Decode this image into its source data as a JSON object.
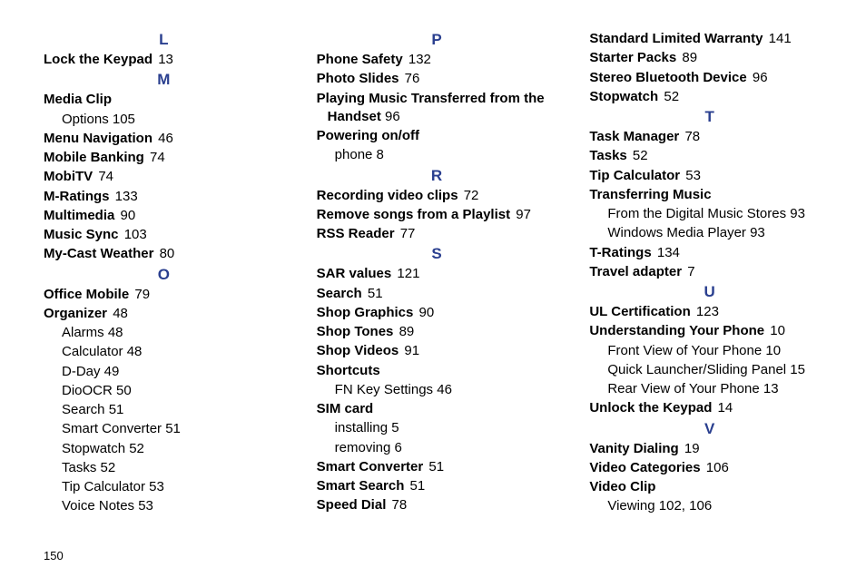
{
  "colors": {
    "letter": "#2a3f8f",
    "text": "#000000",
    "background": "#ffffff"
  },
  "page_number": "150",
  "columns": [
    {
      "groups": [
        {
          "letter": "L",
          "entries": [
            {
              "term": "Lock the Keypad",
              "page": "13"
            }
          ]
        },
        {
          "letter": "M",
          "entries": [
            {
              "term": "Media Clip",
              "subs": [
                {
                  "label": "Options",
                  "page": "105"
                }
              ]
            },
            {
              "term": "Menu Navigation",
              "page": "46"
            },
            {
              "term": "Mobile Banking",
              "page": "74"
            },
            {
              "term": "MobiTV",
              "page": "74"
            },
            {
              "term": "M-Ratings",
              "page": "133"
            },
            {
              "term": "Multimedia",
              "page": "90"
            },
            {
              "term": "Music Sync",
              "page": "103"
            },
            {
              "term": "My-Cast Weather",
              "page": "80"
            }
          ]
        },
        {
          "letter": "O",
          "entries": [
            {
              "term": "Office Mobile",
              "page": "79"
            },
            {
              "term": "Organizer",
              "page": "48",
              "subs": [
                {
                  "label": "Alarms",
                  "page": "48"
                },
                {
                  "label": "Calculator",
                  "page": "48"
                },
                {
                  "label": "D-Day",
                  "page": "49"
                },
                {
                  "label": "DioOCR",
                  "page": "50"
                },
                {
                  "label": "Search",
                  "page": "51"
                },
                {
                  "label": "Smart Converter",
                  "page": "51"
                },
                {
                  "label": "Stopwatch",
                  "page": "52"
                },
                {
                  "label": "Tasks",
                  "page": "52"
                },
                {
                  "label": "Tip Calculator",
                  "page": "53"
                },
                {
                  "label": "Voice Notes",
                  "page": "53"
                }
              ]
            }
          ]
        }
      ]
    },
    {
      "groups": [
        {
          "letter": "P",
          "entries": [
            {
              "term": "Phone Safety",
              "page": "132"
            },
            {
              "term": "Photo Slides",
              "page": "76"
            },
            {
              "term": "Playing Music Transferred from the Handset",
              "page": "96",
              "hang": true
            },
            {
              "term": "Powering on/off",
              "subs": [
                {
                  "label": "phone",
                  "page": "8"
                }
              ]
            }
          ]
        },
        {
          "letter": "R",
          "entries": [
            {
              "term": "Recording video clips",
              "page": "72"
            },
            {
              "term": "Remove songs from a Playlist",
              "page": "97"
            },
            {
              "term": "RSS Reader",
              "page": "77"
            }
          ]
        },
        {
          "letter": "S",
          "entries": [
            {
              "term": "SAR values",
              "page": "121"
            },
            {
              "term": "Search",
              "page": "51"
            },
            {
              "term": "Shop Graphics",
              "page": "90"
            },
            {
              "term": "Shop Tones",
              "page": "89"
            },
            {
              "term": "Shop Videos",
              "page": "91"
            },
            {
              "term": "Shortcuts",
              "subs": [
                {
                  "label": "FN Key Settings",
                  "page": "46"
                }
              ]
            },
            {
              "term": "SIM card",
              "subs": [
                {
                  "label": "installing",
                  "page": "5"
                },
                {
                  "label": "removing",
                  "page": "6"
                }
              ]
            },
            {
              "term": "Smart Converter",
              "page": "51"
            },
            {
              "term": "Smart Search",
              "page": "51"
            },
            {
              "term": "Speed Dial",
              "page": "78"
            }
          ]
        }
      ]
    },
    {
      "groups": [
        {
          "letter": "",
          "entries": [
            {
              "term": "Standard Limited Warranty",
              "page": "141"
            },
            {
              "term": "Starter Packs",
              "page": "89"
            },
            {
              "term": "Stereo Bluetooth Device",
              "page": "96"
            },
            {
              "term": "Stopwatch",
              "page": "52"
            }
          ]
        },
        {
          "letter": "T",
          "entries": [
            {
              "term": "Task Manager",
              "page": "78"
            },
            {
              "term": "Tasks",
              "page": "52"
            },
            {
              "term": "Tip Calculator",
              "page": "53"
            },
            {
              "term": "Transferring Music",
              "subs": [
                {
                  "label": "From the Digital Music Stores",
                  "page": "93"
                },
                {
                  "label": "Windows Media Player",
                  "page": "93"
                }
              ]
            },
            {
              "term": "T-Ratings",
              "page": "134"
            },
            {
              "term": "Travel adapter",
              "page": "7"
            }
          ]
        },
        {
          "letter": "U",
          "entries": [
            {
              "term": "UL Certification",
              "page": "123"
            },
            {
              "term": "Understanding Your Phone",
              "page": "10",
              "subs": [
                {
                  "label": "Front View of Your Phone",
                  "page": "10"
                },
                {
                  "label": "Quick Launcher/Sliding Panel",
                  "page": "15"
                },
                {
                  "label": "Rear View of Your Phone",
                  "page": "13"
                }
              ]
            },
            {
              "term": "Unlock the Keypad",
              "page": "14"
            }
          ]
        },
        {
          "letter": "V",
          "entries": [
            {
              "term": "Vanity Dialing",
              "page": "19"
            },
            {
              "term": "Video Categories",
              "page": "106"
            },
            {
              "term": "Video Clip",
              "subs": [
                {
                  "label": "Viewing",
                  "page": "102, 106"
                }
              ]
            }
          ]
        }
      ]
    }
  ]
}
